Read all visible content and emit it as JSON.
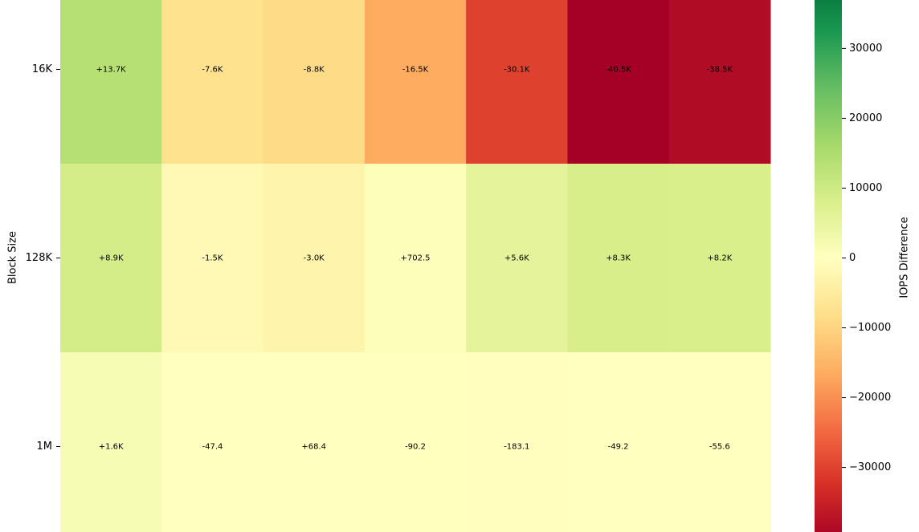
{
  "chart_data": {
    "type": "heatmap",
    "y_label": "Block Size",
    "rows": [
      "16K",
      "128K",
      "1M"
    ],
    "values": [
      [
        13700,
        -7600,
        -8800,
        -16500,
        -30100,
        -40500,
        -38500
      ],
      [
        8900,
        -1500,
        -3000,
        702.5,
        5600,
        8300,
        8200
      ],
      [
        1600,
        -47.4,
        68.4,
        -90.2,
        -183.1,
        -49.2,
        -55.6
      ]
    ],
    "value_labels": [
      [
        "+13.7K",
        "-7.6K",
        "-8.8K",
        "-16.5K",
        "-30.1K",
        "-40.5K",
        "-38.5K"
      ],
      [
        "+8.9K",
        "-1.5K",
        "-3.0K",
        "+702.5",
        "+5.6K",
        "+8.3K",
        "+8.2K"
      ],
      [
        "+1.6K",
        "-47.4",
        "+68.4",
        "-90.2",
        "-183.1",
        "-49.2",
        "-55.6"
      ]
    ],
    "colormap": "RdYlGn",
    "colorbar_label": "IOPS Difference",
    "clim": [
      -40500,
      40500
    ],
    "cticks": [
      {
        "value": -30000,
        "label": "−30000"
      },
      {
        "value": -20000,
        "label": "−20000"
      },
      {
        "value": -10000,
        "label": "−10000"
      },
      0,
      10000,
      20000,
      30000
    ]
  }
}
